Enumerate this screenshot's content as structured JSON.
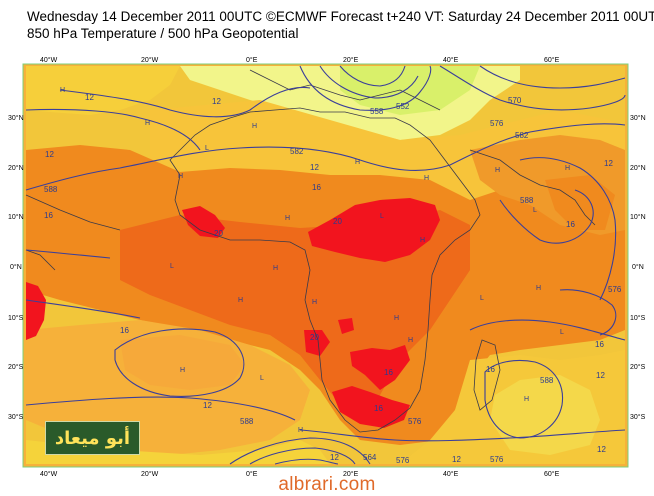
{
  "header": {
    "line1": "Wednesday 14 December 2011 00UTC ©ECMWF Forecast t+240 VT: Saturday 24 December 2011 00UTC",
    "line2": "850 hPa Temperature / 500 hPa Geopotential"
  },
  "axes": {
    "lon_labels": [
      "40°W",
      "20°W",
      "0°E",
      "20°E",
      "40°E",
      "60°E"
    ],
    "lat_labels": [
      "30°N",
      "20°N",
      "10°N",
      "0°N",
      "10°S",
      "20°S",
      "30°S"
    ]
  },
  "colors": {
    "pale_yellow": "#f2f58a",
    "yellow": "#f5d33a",
    "light_orange": "#f6b13a",
    "orange": "#f08a1e",
    "deep_orange": "#ee6a1a",
    "red": "#f2141e",
    "contour": "#3b3f9a",
    "frame": "#7dcf7a"
  },
  "contour_labels": [
    "12",
    "12",
    "12",
    "12",
    "16",
    "16",
    "16",
    "16",
    "20",
    "20",
    "20",
    "16",
    "12",
    "12",
    "12",
    "16",
    "16",
    "12",
    "12",
    "12",
    "16",
    "552",
    "570",
    "576",
    "582",
    "588",
    "582",
    "588",
    "576",
    "588",
    "576",
    "588",
    "576",
    "564",
    "558",
    "576"
  ],
  "watermark": "albrari.com",
  "logo_text": "أبو ميعاد"
}
